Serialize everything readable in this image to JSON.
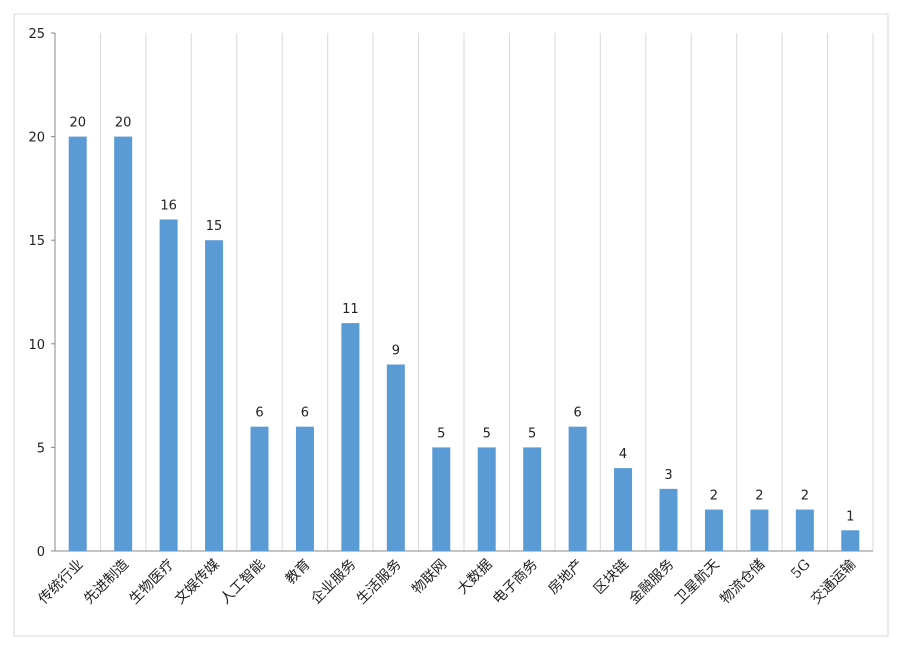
{
  "chart_data": {
    "type": "bar",
    "categories": [
      "传统行业",
      "先进制造",
      "生物医疗",
      "文娱传媒",
      "人工智能",
      "教育",
      "企业服务",
      "生活服务",
      "物联网",
      "大数据",
      "电子商务",
      "房地产",
      "区块链",
      "金融服务",
      "卫星航天",
      "物流仓储",
      "5G",
      "交通运输"
    ],
    "values": [
      20,
      20,
      16,
      15,
      6,
      6,
      11,
      9,
      5,
      5,
      5,
      6,
      4,
      3,
      2,
      2,
      2,
      1
    ],
    "color": "#5b9bd5",
    "ylim": [
      0,
      25
    ],
    "yticks": [
      0,
      5,
      10,
      15,
      20,
      25
    ],
    "grid": true
  }
}
